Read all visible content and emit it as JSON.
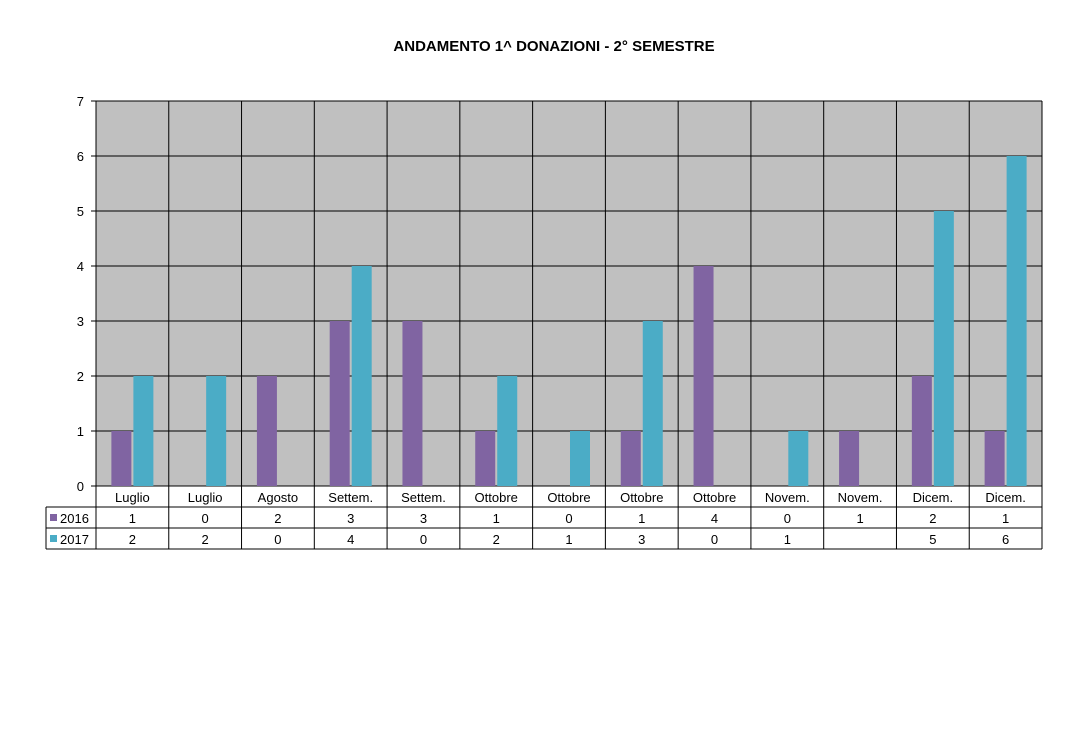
{
  "chart_data": {
    "type": "bar",
    "title": "ANDAMENTO  1^ DONAZIONI   -   2° SEMESTRE",
    "categories": [
      "Luglio",
      "Luglio",
      "Agosto",
      "Settem.",
      "Settem.",
      "Ottobre",
      "Ottobre",
      "Ottobre",
      "Ottobre",
      "Novem.",
      "Novem.",
      "Dicem.",
      "Dicem."
    ],
    "series": [
      {
        "name": "2016",
        "color": "#8064A2",
        "values": [
          1,
          0,
          2,
          3,
          3,
          1,
          0,
          1,
          4,
          0,
          1,
          2,
          1
        ]
      },
      {
        "name": "2017",
        "color": "#4BACC6",
        "values": [
          2,
          2,
          0,
          4,
          0,
          2,
          1,
          3,
          0,
          1,
          null,
          5,
          6
        ]
      }
    ],
    "ylim": [
      0,
      7
    ],
    "yticks": [
      0,
      1,
      2,
      3,
      4,
      5,
      6,
      7
    ],
    "grid": true,
    "plot_background": "#C0C0C0",
    "legend_placement": "data-table-left"
  }
}
